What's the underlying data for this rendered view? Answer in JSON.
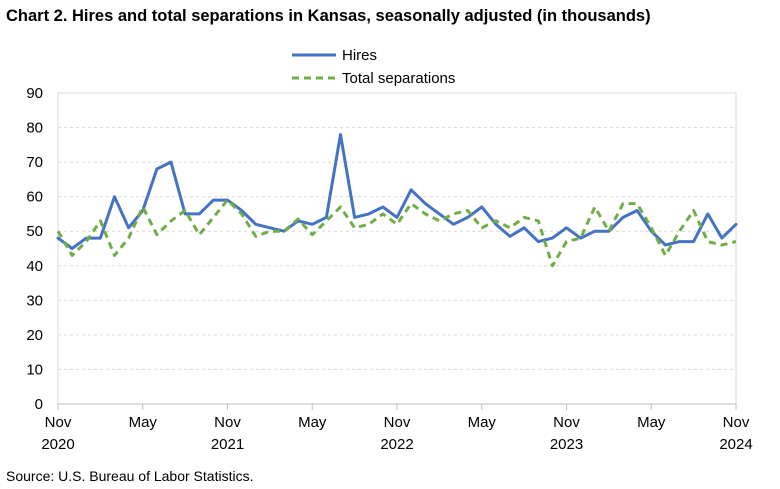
{
  "title": "Chart 2. Hires and total separations in Kansas, seasonally adjusted (in thousands)",
  "source": "Source: U.S. Bureau of Labor Statistics.",
  "chart_data": {
    "type": "line",
    "x": [
      "2020-11",
      "2020-12",
      "2021-01",
      "2021-02",
      "2021-03",
      "2021-04",
      "2021-05",
      "2021-06",
      "2021-07",
      "2021-08",
      "2021-09",
      "2021-10",
      "2021-11",
      "2021-12",
      "2022-01",
      "2022-02",
      "2022-03",
      "2022-04",
      "2022-05",
      "2022-06",
      "2022-07",
      "2022-08",
      "2022-09",
      "2022-10",
      "2022-11",
      "2022-12",
      "2023-01",
      "2023-02",
      "2023-03",
      "2023-04",
      "2023-05",
      "2023-06",
      "2023-07",
      "2023-08",
      "2023-09",
      "2023-10",
      "2023-11",
      "2023-12",
      "2024-01",
      "2024-02",
      "2024-03",
      "2024-04",
      "2024-05",
      "2024-06",
      "2024-07",
      "2024-08",
      "2024-09",
      "2024-10",
      "2024-11"
    ],
    "x_tick_labels": [
      {
        "index": 0,
        "month": "Nov",
        "year": "2020"
      },
      {
        "index": 6,
        "month": "May",
        "year": ""
      },
      {
        "index": 12,
        "month": "Nov",
        "year": "2021"
      },
      {
        "index": 18,
        "month": "May",
        "year": ""
      },
      {
        "index": 24,
        "month": "Nov",
        "year": "2022"
      },
      {
        "index": 30,
        "month": "May",
        "year": ""
      },
      {
        "index": 36,
        "month": "Nov",
        "year": "2023"
      },
      {
        "index": 42,
        "month": "May",
        "year": ""
      },
      {
        "index": 48,
        "month": "Nov",
        "year": "2024"
      }
    ],
    "ylim": [
      0,
      90
    ],
    "yticks": [
      0,
      10,
      20,
      30,
      40,
      50,
      60,
      70,
      80,
      90
    ],
    "grid": "horizontal-dashed",
    "legend_position": "top-center",
    "series": [
      {
        "name": "Hires",
        "color": "#4472C4",
        "style": "solid",
        "values": [
          48,
          45,
          48,
          48,
          60,
          51,
          56,
          68,
          70,
          55,
          55,
          59,
          59,
          56,
          52,
          51,
          50,
          53,
          52,
          54,
          78,
          54,
          55,
          57,
          54,
          62,
          58,
          55,
          52,
          54,
          57,
          52,
          48.5,
          51,
          47,
          48,
          51,
          48,
          50,
          50,
          54,
          56,
          50,
          46,
          47,
          47,
          55,
          48,
          52
        ]
      },
      {
        "name": "Total separations",
        "color": "#70AD47",
        "style": "dashed",
        "values": [
          50,
          43,
          47,
          53,
          43,
          48,
          57,
          49,
          53,
          56,
          49,
          54,
          59,
          55,
          48.5,
          50,
          50,
          53.5,
          49,
          53,
          57,
          51,
          52,
          55,
          52,
          58,
          55,
          53,
          55,
          56,
          51,
          53,
          51,
          54,
          53,
          40,
          47,
          48,
          57,
          50,
          58,
          58,
          51,
          43,
          50,
          56,
          47,
          46,
          47
        ]
      }
    ]
  }
}
